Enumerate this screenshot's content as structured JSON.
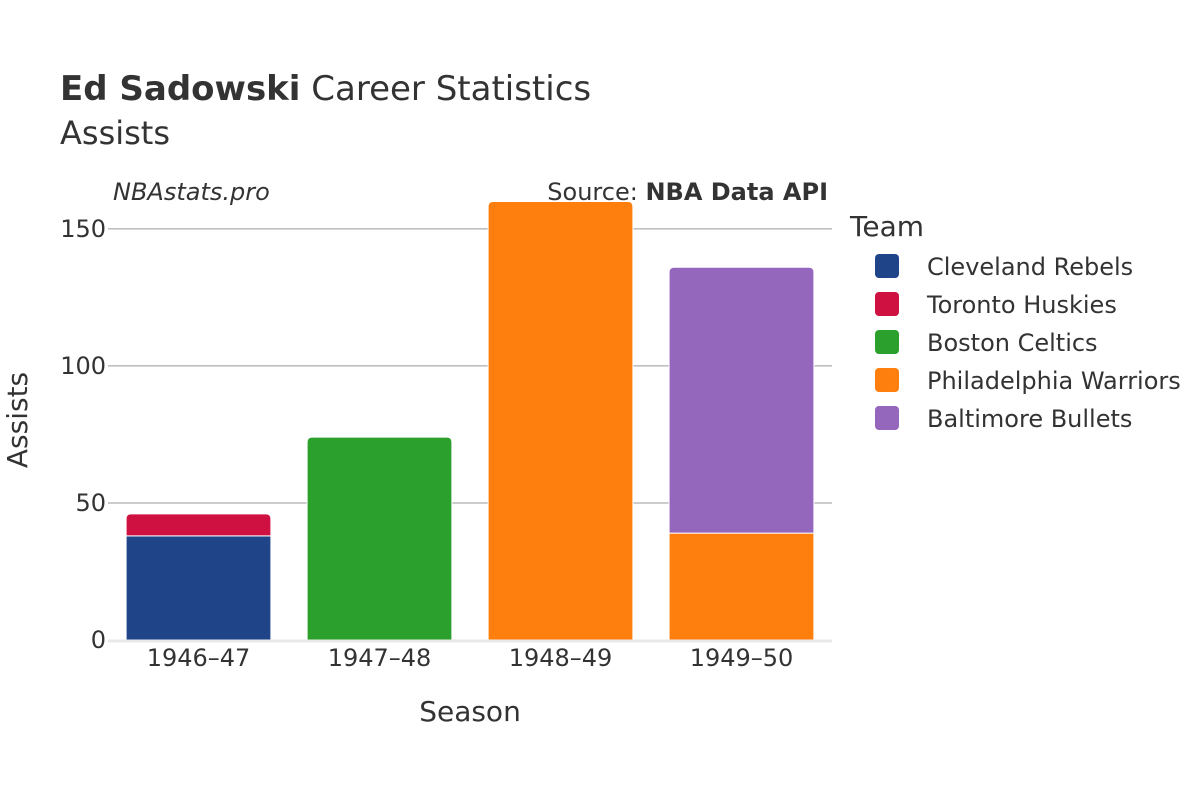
{
  "header": {
    "title_bold": "Ed Sadowski",
    "title_rest": " Career Statistics",
    "subtitle": "Assists",
    "watermark": "NBAstats.pro",
    "source_prefix": "Source: ",
    "source_name": "NBA Data API"
  },
  "chart_data": {
    "type": "bar",
    "stacked": true,
    "categories": [
      "1946–47",
      "1947–48",
      "1948–49",
      "1949–50"
    ],
    "xlabel": "Season",
    "ylabel": "Assists",
    "ylim": [
      0,
      166
    ],
    "yticks": [
      0,
      50,
      100,
      150
    ],
    "grid": true,
    "legend_title": "Team",
    "legend_position": "right",
    "series": [
      {
        "name": "Cleveland Rebels",
        "color": "#1f4488",
        "values": [
          38,
          0,
          0,
          0
        ]
      },
      {
        "name": "Toronto Huskies",
        "color": "#ce1141",
        "values": [
          8,
          0,
          0,
          0
        ]
      },
      {
        "name": "Boston Celtics",
        "color": "#2ca02c",
        "values": [
          0,
          74,
          0,
          0
        ]
      },
      {
        "name": "Philadelphia Warriors",
        "color": "#ff7f0e",
        "values": [
          0,
          0,
          160,
          39
        ]
      },
      {
        "name": "Baltimore Bullets",
        "color": "#9467bd",
        "values": [
          0,
          0,
          0,
          97
        ]
      }
    ]
  }
}
